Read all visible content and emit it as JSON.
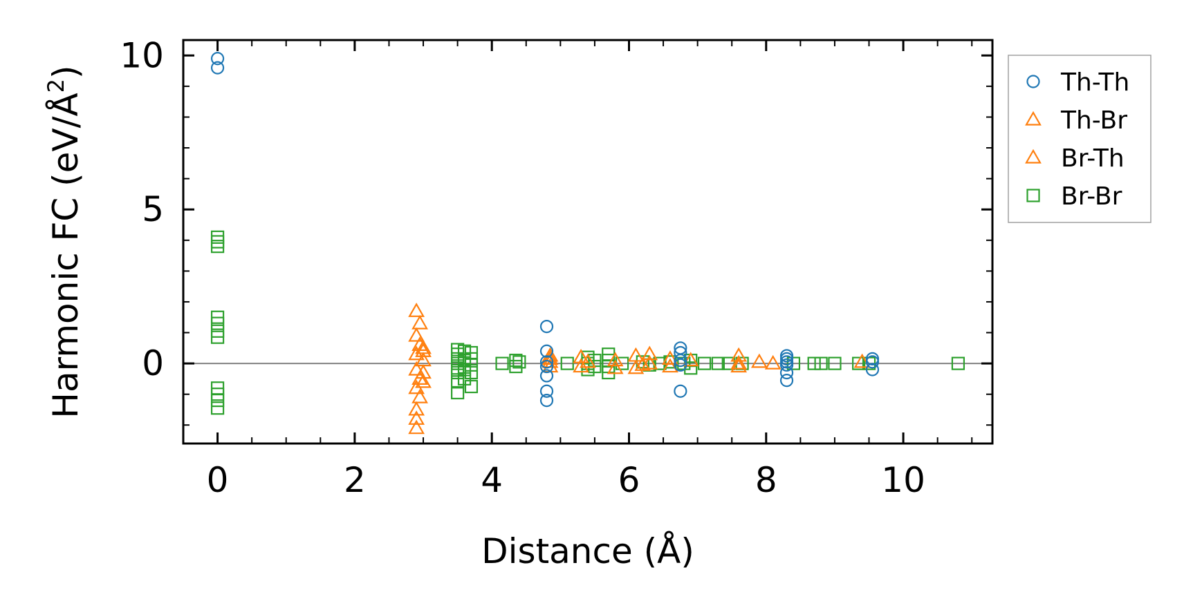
{
  "chart_data": {
    "type": "scatter",
    "xlabel": "Distance (Å)",
    "ylabel_main": "Harmonic FC (eV/Å",
    "ylabel_sup": "2",
    "ylabel_close": ")",
    "xlim": [
      -0.5,
      11.3
    ],
    "ylim": [
      -2.6,
      10.5
    ],
    "x_major_ticks": [
      0,
      2,
      4,
      6,
      8,
      10
    ],
    "x_major_tick_labels": [
      "0",
      "2",
      "4",
      "6",
      "8",
      "10"
    ],
    "y_major_ticks": [
      0,
      5,
      10
    ],
    "y_major_tick_labels": [
      "0",
      "5",
      "10"
    ],
    "zero_line": true,
    "legend_position": "outside-right-top",
    "series": [
      {
        "name": "Th-Th",
        "marker": "circle",
        "color": "#1f77b4",
        "points": [
          [
            0.0,
            9.9
          ],
          [
            0.0,
            9.6
          ],
          [
            4.8,
            1.2
          ],
          [
            4.8,
            0.4
          ],
          [
            4.8,
            0.05
          ],
          [
            4.8,
            -0.1
          ],
          [
            4.8,
            -0.4
          ],
          [
            4.8,
            -0.9
          ],
          [
            4.8,
            -1.2
          ],
          [
            6.75,
            0.5
          ],
          [
            6.75,
            0.35
          ],
          [
            6.75,
            0.1
          ],
          [
            6.75,
            -0.05
          ],
          [
            6.75,
            -0.9
          ],
          [
            8.3,
            0.25
          ],
          [
            8.3,
            0.15
          ],
          [
            8.3,
            0.05
          ],
          [
            8.3,
            -0.05
          ],
          [
            8.3,
            -0.3
          ],
          [
            8.3,
            -0.55
          ],
          [
            9.55,
            0.15
          ],
          [
            9.55,
            0.05
          ],
          [
            9.55,
            -0.2
          ]
        ]
      },
      {
        "name": "Th-Br",
        "marker": "triangle",
        "color": "#ff7f0e",
        "points": [
          [
            2.9,
            1.7
          ],
          [
            2.95,
            1.3
          ],
          [
            2.9,
            0.9
          ],
          [
            2.95,
            0.6
          ],
          [
            2.9,
            0.3
          ],
          [
            3.0,
            0.1
          ],
          [
            2.9,
            -0.2
          ],
          [
            2.95,
            -0.5
          ],
          [
            2.9,
            -0.8
          ],
          [
            2.95,
            -1.1
          ],
          [
            2.9,
            -1.5
          ],
          [
            2.9,
            -1.8
          ],
          [
            2.9,
            -2.1
          ],
          [
            3.0,
            0.5
          ],
          [
            3.0,
            -0.3
          ],
          [
            4.85,
            0.25
          ],
          [
            4.85,
            0.05
          ],
          [
            4.85,
            -0.1
          ],
          [
            5.3,
            0.2
          ],
          [
            5.3,
            -0.1
          ],
          [
            5.8,
            0.1
          ],
          [
            5.8,
            -0.15
          ],
          [
            6.1,
            0.25
          ],
          [
            6.1,
            -0.15
          ],
          [
            6.3,
            0.3
          ],
          [
            6.3,
            0.0
          ],
          [
            6.6,
            0.15
          ],
          [
            6.6,
            -0.1
          ],
          [
            7.6,
            0.25
          ],
          [
            7.6,
            -0.1
          ],
          [
            7.9,
            0.05
          ],
          [
            8.1,
            0.0
          ],
          [
            9.4,
            0.05
          ]
        ]
      },
      {
        "name": "Br-Th",
        "marker": "triangle",
        "color": "#ff7f0e",
        "points": [
          [
            3.0,
            0.4
          ],
          [
            3.0,
            -0.6
          ],
          [
            4.85,
            0.15
          ],
          [
            5.4,
            0.05
          ],
          [
            6.2,
            -0.05
          ],
          [
            6.9,
            0.1
          ],
          [
            7.6,
            0.0
          ]
        ]
      },
      {
        "name": "Br-Br",
        "marker": "square",
        "color": "#2ca02c",
        "points": [
          [
            0.0,
            4.1
          ],
          [
            0.0,
            3.95
          ],
          [
            0.0,
            3.8
          ],
          [
            0.0,
            1.5
          ],
          [
            0.0,
            1.3
          ],
          [
            0.0,
            1.05
          ],
          [
            0.0,
            0.85
          ],
          [
            0.0,
            -0.8
          ],
          [
            0.0,
            -1.0
          ],
          [
            0.0,
            -1.2
          ],
          [
            0.0,
            -1.45
          ],
          [
            3.5,
            0.45
          ],
          [
            3.5,
            0.3
          ],
          [
            3.5,
            0.15
          ],
          [
            3.5,
            0.0
          ],
          [
            3.5,
            -0.15
          ],
          [
            3.5,
            -0.3
          ],
          [
            3.5,
            -0.6
          ],
          [
            3.5,
            -0.95
          ],
          [
            3.6,
            0.4
          ],
          [
            3.6,
            0.1
          ],
          [
            3.6,
            -0.2
          ],
          [
            3.6,
            -0.5
          ],
          [
            3.7,
            0.35
          ],
          [
            3.7,
            0.15
          ],
          [
            3.7,
            -0.05
          ],
          [
            3.7,
            -0.3
          ],
          [
            3.7,
            -0.75
          ],
          [
            4.15,
            0.0
          ],
          [
            4.35,
            0.1
          ],
          [
            4.35,
            -0.1
          ],
          [
            4.4,
            0.05
          ],
          [
            5.1,
            0.0
          ],
          [
            5.4,
            0.2
          ],
          [
            5.4,
            0.0
          ],
          [
            5.4,
            -0.2
          ],
          [
            5.5,
            0.1
          ],
          [
            5.5,
            -0.1
          ],
          [
            5.7,
            0.3
          ],
          [
            5.7,
            0.1
          ],
          [
            5.7,
            -0.1
          ],
          [
            5.7,
            -0.3
          ],
          [
            5.9,
            0.0
          ],
          [
            6.2,
            0.05
          ],
          [
            6.3,
            -0.05
          ],
          [
            6.45,
            0.0
          ],
          [
            6.6,
            0.05
          ],
          [
            6.8,
            0.0
          ],
          [
            6.9,
            0.1
          ],
          [
            6.9,
            -0.15
          ],
          [
            7.1,
            0.0
          ],
          [
            7.3,
            0.0
          ],
          [
            7.45,
            0.0
          ],
          [
            7.65,
            0.0
          ],
          [
            8.4,
            0.0
          ],
          [
            8.7,
            0.0
          ],
          [
            8.8,
            0.0
          ],
          [
            9.0,
            0.0
          ],
          [
            9.35,
            0.0
          ],
          [
            9.5,
            0.0
          ],
          [
            10.8,
            0.0
          ]
        ]
      }
    ]
  }
}
